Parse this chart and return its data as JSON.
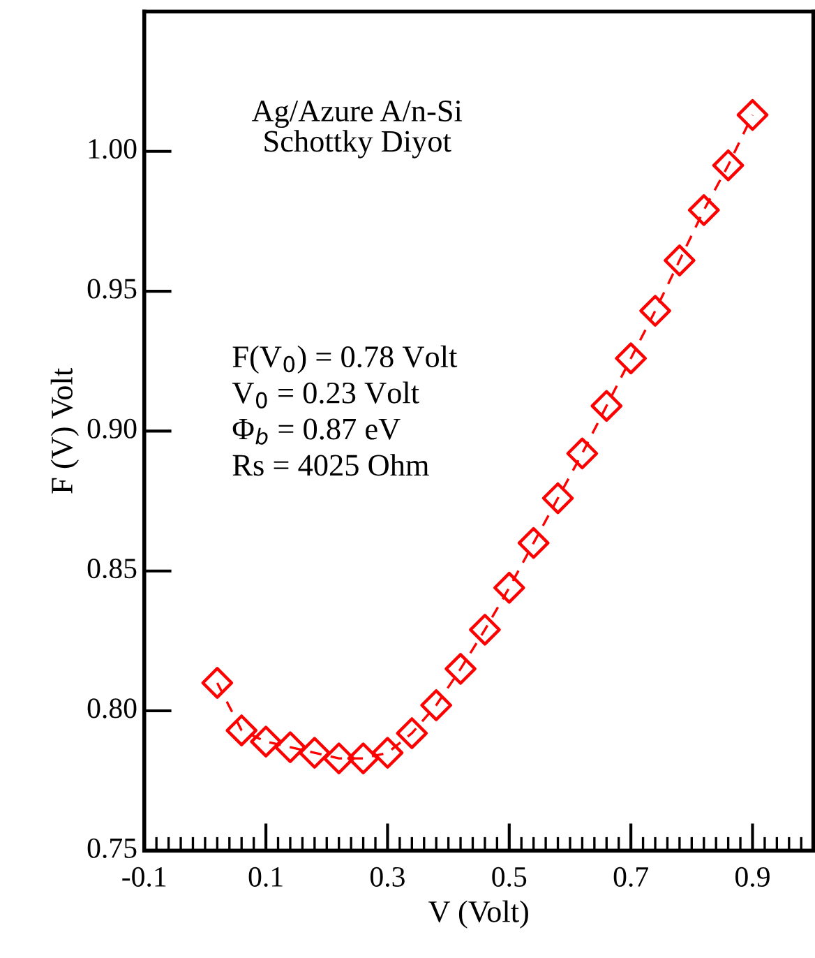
{
  "chart_data": {
    "type": "line",
    "xlabel": "V (Volt)",
    "ylabel": "F (V) Volt",
    "annotations": [
      "Ag/Azure A/n-Si\nSchottky Diyot",
      "F(V$_{0}$) = 0.78 Volt",
      "V$_{0}$ = 0.23 Volt",
      "Φ$_{b}$ = 0.87 eV",
      "Rs = 4025 Ohm"
    ],
    "x": [
      0.02,
      0.06,
      0.1,
      0.14,
      0.18,
      0.22,
      0.26,
      0.3,
      0.34,
      0.38,
      0.42,
      0.46,
      0.5,
      0.54,
      0.58,
      0.62,
      0.66,
      0.7,
      0.74,
      0.78,
      0.82,
      0.86,
      0.9
    ],
    "series": [
      {
        "color": "#ff0000",
        "values": [
          0.81,
          0.793,
          0.789,
          0.787,
          0.785,
          0.783,
          0.783,
          0.785,
          0.792,
          0.802,
          0.815,
          0.829,
          0.844,
          0.86,
          0.876,
          0.892,
          0.909,
          0.926,
          0.943,
          0.961,
          0.979,
          0.995,
          1.013
        ]
      }
    ],
    "marker": "diamond",
    "line_style": "dashed",
    "xlim": [
      -0.1,
      1.0
    ],
    "ylim": [
      0.75,
      1.05
    ],
    "xticks": [
      -0.1,
      0.1,
      0.3,
      0.5,
      0.7,
      0.9
    ],
    "yticks": [
      0.75,
      {
        "value": 0.8,
        "label": "0.80"
      },
      0.85,
      {
        "value": 0.9,
        "label": "0.90"
      },
      0.95,
      {
        "value": 1.0,
        "label": "1.00"
      }
    ],
    "grid": false,
    "legend": false
  }
}
